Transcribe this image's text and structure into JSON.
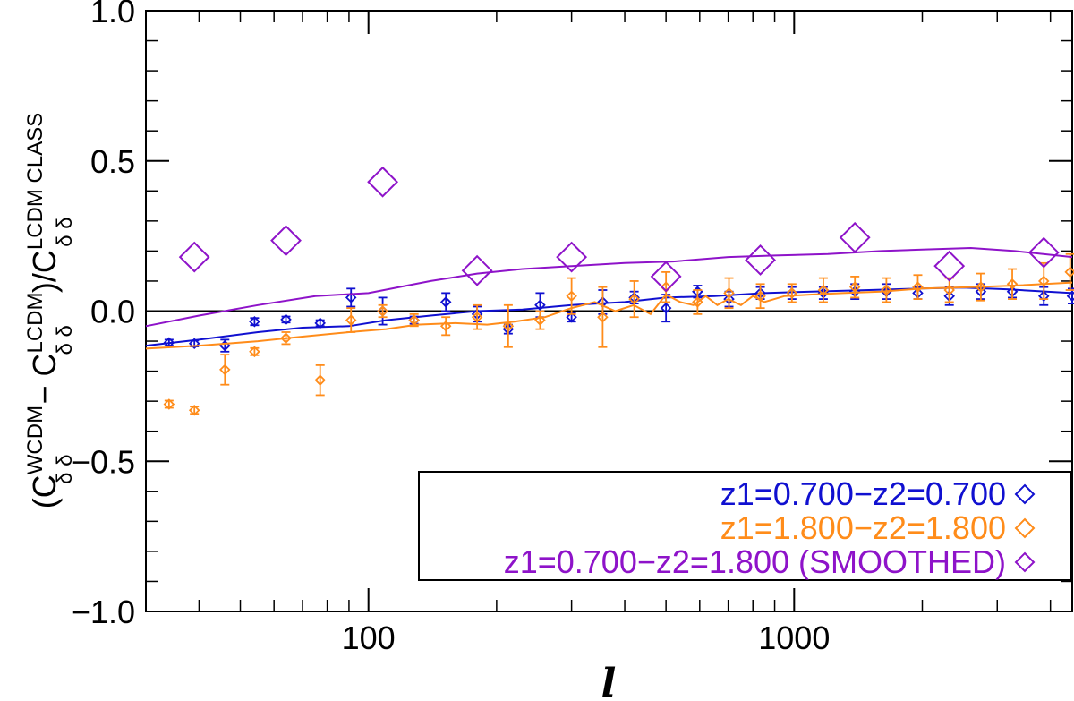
{
  "chart_data": {
    "type": "scatter",
    "xscale": "log",
    "xlim": [
      30,
      4500
    ],
    "ylim": [
      -1.0,
      1.0
    ],
    "xlabel": "l",
    "ylabel": {
      "prefix": "(C",
      "wcdm_sup": "WCDM",
      "sub1": "δ δ",
      "minus": " − C",
      "lcdm_sup": "LCDM",
      "sub2": "δ δ",
      "divide": ")/C",
      "class_sup": "LCDM CLASS",
      "sub3": "δ δ"
    },
    "xticks": [
      {
        "value": 100,
        "label": "100"
      },
      {
        "value": 1000,
        "label": "1000"
      }
    ],
    "yticks": [
      {
        "value": 1.0,
        "label": "1.0"
      },
      {
        "value": 0.5,
        "label": "0.5"
      },
      {
        "value": 0.0,
        "label": "0.0"
      },
      {
        "value": -0.5,
        "label": "−0.5"
      },
      {
        "value": -1.0,
        "label": "−1.0"
      }
    ],
    "zero_line": 0.0,
    "series": [
      {
        "name": "z1=0.700−z2=0.700",
        "color": "#1010d0",
        "marker": "diamond",
        "marker_size": "small",
        "x": [
          34,
          39,
          46,
          54,
          64,
          77,
          91,
          108,
          128,
          152,
          180,
          213,
          253,
          300,
          355,
          421,
          500,
          593,
          703,
          833,
          988,
          1171,
          1389,
          1647,
          1952,
          2315,
          2745,
          3254,
          3859,
          4500
        ],
        "y": [
          -0.105,
          -0.108,
          -0.115,
          -0.035,
          -0.028,
          -0.04,
          0.045,
          0.0,
          -0.03,
          0.03,
          -0.01,
          -0.06,
          0.02,
          -0.02,
          0.03,
          0.045,
          0.01,
          0.065,
          0.04,
          0.06,
          0.06,
          0.06,
          0.065,
          0.065,
          0.06,
          0.05,
          0.065,
          0.065,
          0.05,
          0.05
        ],
        "err": [
          0.01,
          0.01,
          0.02,
          0.012,
          0.01,
          0.01,
          0.03,
          0.045,
          0.012,
          0.03,
          0.025,
          0.015,
          0.04,
          0.015,
          0.04,
          0.02,
          0.045,
          0.02,
          0.025,
          0.02,
          0.02,
          0.02,
          0.025,
          0.025,
          0.02,
          0.03,
          0.025,
          0.02,
          0.03,
          0.025
        ],
        "smooth_x": [
          30,
          40,
          55,
          70,
          90,
          110,
          140,
          180,
          230,
          300,
          400,
          500,
          650,
          850,
          1100,
          1500,
          2000,
          2500,
          3200,
          4500
        ],
        "smooth_y": [
          -0.115,
          -0.095,
          -0.07,
          -0.055,
          -0.05,
          -0.03,
          -0.015,
          0.0,
          0.005,
          0.02,
          0.03,
          0.045,
          0.05,
          0.06,
          0.065,
          0.07,
          0.075,
          0.078,
          0.072,
          0.06
        ]
      },
      {
        "name": "z1=1.800−z2=1.800",
        "color": "#ff8c1a",
        "marker": "diamond",
        "marker_size": "small",
        "x": [
          34,
          39,
          46,
          54,
          64,
          77,
          91,
          108,
          128,
          152,
          180,
          213,
          253,
          300,
          355,
          421,
          500,
          593,
          703,
          833,
          988,
          1171,
          1389,
          1647,
          1952,
          2315,
          2745,
          3254,
          3859,
          4450
        ],
        "y": [
          -0.31,
          -0.33,
          -0.195,
          -0.135,
          -0.09,
          -0.23,
          -0.03,
          0.0,
          -0.03,
          -0.05,
          -0.02,
          -0.05,
          -0.03,
          0.05,
          -0.02,
          0.04,
          0.08,
          0.03,
          0.06,
          0.05,
          0.06,
          0.07,
          0.08,
          0.07,
          0.08,
          0.07,
          0.08,
          0.09,
          0.1,
          0.13
        ],
        "err": [
          0.012,
          0.012,
          0.05,
          0.012,
          0.02,
          0.05,
          0.04,
          0.02,
          0.02,
          0.03,
          0.04,
          0.07,
          0.03,
          0.06,
          0.1,
          0.06,
          0.05,
          0.04,
          0.05,
          0.04,
          0.03,
          0.04,
          0.035,
          0.04,
          0.04,
          0.04,
          0.045,
          0.05,
          0.06,
          0.06
        ],
        "smooth_x": [
          30,
          40,
          55,
          70,
          90,
          110,
          130,
          160,
          190,
          220,
          260,
          300,
          340,
          380,
          420,
          460,
          500,
          540,
          580,
          620,
          660,
          700,
          750,
          800,
          850,
          950,
          1100,
          1300,
          1600,
          2000,
          2600,
          3300,
          4500
        ],
        "smooth_y": [
          -0.125,
          -0.115,
          -0.1,
          -0.085,
          -0.07,
          -0.06,
          -0.045,
          -0.04,
          -0.045,
          -0.035,
          -0.02,
          0.01,
          0.03,
          0.0,
          0.02,
          -0.01,
          0.055,
          0.03,
          0.02,
          0.05,
          0.02,
          0.04,
          0.02,
          0.05,
          0.03,
          0.05,
          0.055,
          0.06,
          0.065,
          0.075,
          0.08,
          0.085,
          0.095
        ]
      },
      {
        "name": "z1=0.700−z2=1.800 (SMOOTHED)",
        "color": "#8e13c9",
        "marker": "diamond",
        "marker_size": "large",
        "x": [
          39,
          64,
          108,
          180,
          300,
          500,
          833,
          1389,
          2315,
          3859
        ],
        "y": [
          0.18,
          0.235,
          0.43,
          0.135,
          0.18,
          0.115,
          0.17,
          0.245,
          0.15,
          0.195
        ],
        "err": [],
        "smooth_x": [
          30,
          40,
          55,
          75,
          100,
          140,
          180,
          230,
          300,
          400,
          520,
          700,
          900,
          1200,
          1600,
          2000,
          2600,
          3300,
          4500
        ],
        "smooth_y": [
          -0.05,
          -0.015,
          0.02,
          0.05,
          0.06,
          0.1,
          0.125,
          0.14,
          0.15,
          0.16,
          0.165,
          0.18,
          0.185,
          0.19,
          0.2,
          0.205,
          0.21,
          0.2,
          0.18
        ]
      }
    ],
    "legend": {
      "position": "bottom-right",
      "entries": [
        {
          "label": "z1=0.700−z2=0.700",
          "color": "#1010d0",
          "marker": "diamond"
        },
        {
          "label": "z1=1.800−z2=1.800",
          "color": "#ff8c1a",
          "marker": "diamond"
        },
        {
          "label": "z1=0.700−z2=1.800 (SMOOTHED)",
          "color": "#8e13c9",
          "marker": "diamond"
        }
      ]
    }
  }
}
